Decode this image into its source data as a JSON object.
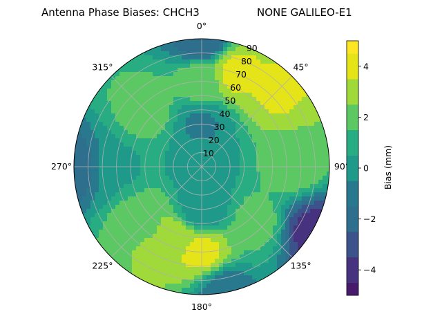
{
  "chart_data": {
    "type": "polar-contour",
    "title_left": "Antenna Phase Biases: CHCH3",
    "title_right": "NONE GALILEO-E1",
    "angle_ticks": [
      {
        "deg": 0,
        "label": "0°"
      },
      {
        "deg": 45,
        "label": "45°"
      },
      {
        "deg": 90,
        "label": "90°"
      },
      {
        "deg": 135,
        "label": "135°"
      },
      {
        "deg": 180,
        "label": "180°"
      },
      {
        "deg": 225,
        "label": "225°"
      },
      {
        "deg": 270,
        "label": "270°"
      },
      {
        "deg": 315,
        "label": "315°"
      }
    ],
    "radial_ticks": [
      10,
      20,
      30,
      40,
      50,
      60,
      70,
      80,
      90
    ],
    "radial_range": [
      0,
      90
    ],
    "grid": true,
    "colorbar": {
      "label": "Bias (mm)",
      "range": [
        -5,
        5
      ],
      "ticks": [
        -4,
        -2,
        0,
        2,
        4
      ],
      "levels": [
        -5,
        -4.5,
        -3.5,
        -2.5,
        -1.5,
        -0.5,
        0.5,
        1.5,
        2.5,
        3.5,
        4.5,
        5
      ],
      "colors": [
        "#481a6c",
        "#46327e",
        "#3b528b",
        "#2e6f8e",
        "#29798e",
        "#1f9a8a",
        "#27ad81",
        "#5cc863",
        "#9fda3a",
        "#e5e419",
        "#fde725"
      ]
    },
    "field_samples": [
      {
        "azimuth": 20,
        "zenith": 70,
        "bias": 3.8
      },
      {
        "azimuth": 45,
        "zenith": 75,
        "bias": 3.6
      },
      {
        "azimuth": 0,
        "zenith": 60,
        "bias": 2.2
      },
      {
        "azimuth": 315,
        "zenith": 55,
        "bias": 2.0
      },
      {
        "azimuth": 90,
        "zenith": 65,
        "bias": 2.0
      },
      {
        "azimuth": 180,
        "zenith": 60,
        "bias": 3.8
      },
      {
        "azimuth": 200,
        "zenith": 55,
        "bias": 3.4
      },
      {
        "azimuth": 225,
        "zenith": 55,
        "bias": 2.4
      },
      {
        "azimuth": 135,
        "zenith": 55,
        "bias": 1.8
      },
      {
        "azimuth": 270,
        "zenith": 60,
        "bias": 0.4
      },
      {
        "azimuth": 0,
        "zenith": 0,
        "bias": 0.0
      },
      {
        "azimuth": 0,
        "zenith": 90,
        "bias": -2.5
      },
      {
        "azimuth": 270,
        "zenith": 90,
        "bias": -2.2
      },
      {
        "azimuth": 120,
        "zenith": 90,
        "bias": -3.8
      },
      {
        "azimuth": 170,
        "zenith": 90,
        "bias": -1.2
      },
      {
        "azimuth": 0,
        "zenith": 30,
        "bias": -0.6
      },
      {
        "azimuth": 180,
        "zenith": 30,
        "bias": -0.4
      }
    ]
  }
}
